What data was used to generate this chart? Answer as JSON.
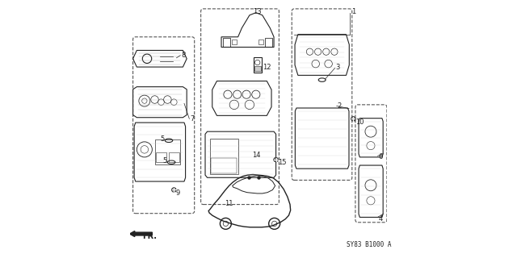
{
  "bg_color": "#ffffff",
  "fig_width": 6.4,
  "fig_height": 3.2,
  "reference_code": "SY83 B1000 A",
  "fr_label": "FR.",
  "dark": "#222222",
  "gray": "#555555",
  "light_gray": "#aaaaaa",
  "lighter_gray": "#cccccc"
}
